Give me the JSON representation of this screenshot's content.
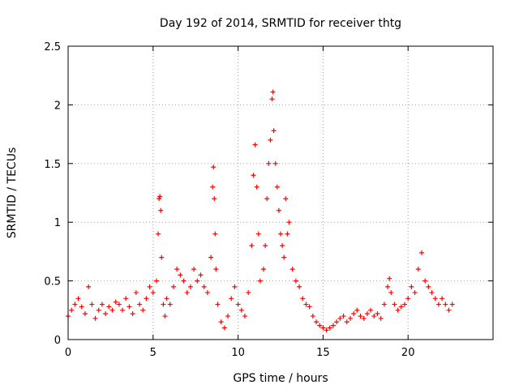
{
  "chart_data": {
    "type": "scatter",
    "title": "Day 192 of 2014, SRMTID for receiver thtg",
    "xlabel": "GPS time / hours",
    "ylabel": "SRMTID / TECUs",
    "xlim": [
      0,
      25
    ],
    "ylim": [
      0,
      2.5
    ],
    "xticks": [
      0,
      5,
      10,
      15,
      20
    ],
    "xtick_labels": [
      "0",
      "5",
      "10",
      "15",
      "20"
    ],
    "yticks": [
      0,
      0.5,
      1,
      1.5,
      2,
      2.5
    ],
    "ytick_labels": [
      "0",
      "0.5",
      "1",
      "1.5",
      "2",
      "2.5"
    ],
    "grid": true,
    "marker": "+",
    "marker_color": "#ff0000",
    "series": [
      {
        "name": "SRMTID",
        "x": [
          0.0,
          0.2,
          0.4,
          0.6,
          0.8,
          1.0,
          1.2,
          1.4,
          1.6,
          1.8,
          2.0,
          2.2,
          2.4,
          2.6,
          2.8,
          3.0,
          3.2,
          3.4,
          3.6,
          3.8,
          4.0,
          4.2,
          4.4,
          4.6,
          4.8,
          5.0,
          5.2,
          5.3,
          5.35,
          5.4,
          5.45,
          5.5,
          5.6,
          5.7,
          5.8,
          6.0,
          6.2,
          6.4,
          6.6,
          6.8,
          7.0,
          7.2,
          7.4,
          7.6,
          7.8,
          8.0,
          8.2,
          8.4,
          8.5,
          8.55,
          8.6,
          8.65,
          8.7,
          8.8,
          9.0,
          9.2,
          9.4,
          9.6,
          9.8,
          10.0,
          10.2,
          10.4,
          10.6,
          10.8,
          10.9,
          11.0,
          11.1,
          11.2,
          11.3,
          11.5,
          11.6,
          11.7,
          11.8,
          11.9,
          12.0,
          12.05,
          12.1,
          12.2,
          12.3,
          12.4,
          12.5,
          12.6,
          12.7,
          12.8,
          12.9,
          13.0,
          13.2,
          13.4,
          13.6,
          13.8,
          14.0,
          14.2,
          14.4,
          14.6,
          14.8,
          15.0,
          15.2,
          15.4,
          15.6,
          15.8,
          16.0,
          16.2,
          16.4,
          16.6,
          16.8,
          17.0,
          17.2,
          17.4,
          17.6,
          17.8,
          18.0,
          18.2,
          18.4,
          18.6,
          18.8,
          18.9,
          19.0,
          19.2,
          19.4,
          19.6,
          19.8,
          20.0,
          20.2,
          20.4,
          20.6,
          20.8,
          21.0,
          21.2,
          21.4,
          21.6,
          21.8,
          22.0,
          22.2,
          22.4,
          22.6
        ],
        "y": [
          0.2,
          0.25,
          0.3,
          0.35,
          0.28,
          0.22,
          0.45,
          0.3,
          0.18,
          0.25,
          0.3,
          0.22,
          0.28,
          0.25,
          0.32,
          0.3,
          0.25,
          0.35,
          0.28,
          0.22,
          0.4,
          0.3,
          0.25,
          0.35,
          0.45,
          0.4,
          0.5,
          0.9,
          1.2,
          1.22,
          1.1,
          0.7,
          0.3,
          0.2,
          0.35,
          0.3,
          0.45,
          0.6,
          0.55,
          0.5,
          0.4,
          0.45,
          0.6,
          0.5,
          0.55,
          0.45,
          0.4,
          0.7,
          1.3,
          1.47,
          1.2,
          0.9,
          0.6,
          0.3,
          0.15,
          0.1,
          0.2,
          0.35,
          0.45,
          0.3,
          0.25,
          0.2,
          0.4,
          0.8,
          1.4,
          1.66,
          1.3,
          0.9,
          0.5,
          0.6,
          0.8,
          1.2,
          1.5,
          1.7,
          2.05,
          2.11,
          1.78,
          1.5,
          1.3,
          1.1,
          0.9,
          0.8,
          0.7,
          1.2,
          0.9,
          1.0,
          0.6,
          0.5,
          0.45,
          0.35,
          0.3,
          0.28,
          0.2,
          0.15,
          0.12,
          0.1,
          0.08,
          0.1,
          0.12,
          0.15,
          0.18,
          0.2,
          0.15,
          0.18,
          0.22,
          0.25,
          0.2,
          0.18,
          0.22,
          0.25,
          0.2,
          0.22,
          0.18,
          0.3,
          0.45,
          0.52,
          0.4,
          0.3,
          0.25,
          0.28,
          0.3,
          0.35,
          0.45,
          0.4,
          0.6,
          0.74,
          0.5,
          0.45,
          0.4,
          0.35,
          0.3,
          0.35,
          0.3,
          0.25,
          0.3
        ]
      }
    ]
  }
}
